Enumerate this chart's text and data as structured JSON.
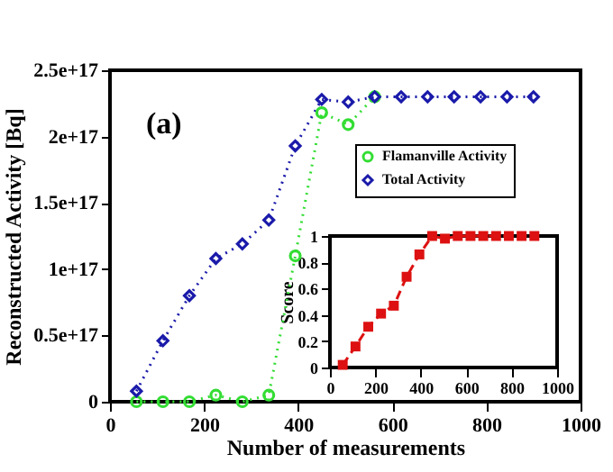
{
  "chart_data": [
    {
      "type": "line",
      "xlabel": "Number of measurements",
      "ylabel": "Reconstructed Activity  [Bq]",
      "annotations": [
        "(a)"
      ],
      "x": [
        56.25,
        112.5,
        168.75,
        225,
        281.25,
        337.5,
        393.75,
        450,
        506.25,
        562.5,
        618.75,
        675,
        731.25,
        787.5,
        843.75,
        900
      ],
      "series": [
        {
          "name": "Flamanville Activity",
          "color": "#33dd33",
          "marker": "circle",
          "values": [
            0,
            0,
            0,
            5000000000000000.0,
            0,
            5000000000000000.0,
            1.1e+17,
            2.18e+17,
            2.09e+17,
            2.3e+17,
            null,
            null,
            null,
            null,
            null,
            null
          ]
        },
        {
          "name": "Total Activity",
          "color": "#1a1aaa",
          "marker": "diamond",
          "values": [
            8000000000000000.0,
            4.6e+16,
            8e+16,
            1.08e+17,
            1.19e+17,
            1.37e+17,
            1.93e+17,
            2.28e+17,
            2.26e+17,
            2.3e+17,
            2.3e+17,
            2.3e+17,
            2.3e+17,
            2.3e+17,
            2.3e+17,
            2.3e+17
          ]
        }
      ],
      "line_style": "dotted",
      "xlim": [
        0,
        1000
      ],
      "ylim": [
        0,
        2.5e+17
      ],
      "xticks": [
        0,
        200,
        400,
        600,
        800,
        1000
      ],
      "yticks": [
        0,
        {
          "value": 5e+16,
          "label": "0.5e+17"
        },
        {
          "value": 1e+17,
          "label": "1e+17"
        },
        {
          "value": 1.5e+17,
          "label": "1.5e+17"
        },
        {
          "value": 2e+17,
          "label": "2e+17"
        },
        {
          "value": 2.5e+17,
          "label": "2.5e+17"
        }
      ],
      "legend": "top right",
      "grid": false
    },
    {
      "type": "line",
      "ylabel": "Score",
      "x": [
        56.25,
        112.5,
        168.75,
        225,
        281.25,
        337.5,
        393.75,
        450,
        506.25,
        562.5,
        618.75,
        675,
        731.25,
        787.5,
        843.75,
        900
      ],
      "series": [
        {
          "color": "#dd1111",
          "marker": "square",
          "values": [
            0.02,
            0.16,
            0.31,
            0.41,
            0.47,
            0.69,
            0.86,
            1.0,
            0.98,
            1.0,
            1.0,
            1.0,
            1.0,
            1.0,
            1.0,
            1.0
          ]
        }
      ],
      "line_style": "dashed",
      "xlim": [
        0,
        1000
      ],
      "ylim": [
        0,
        1
      ],
      "xticks": [
        0,
        200,
        400,
        600,
        800,
        1000
      ],
      "yticks": [
        0,
        0.2,
        0.4,
        0.6,
        0.8,
        1
      ],
      "grid": false
    }
  ]
}
